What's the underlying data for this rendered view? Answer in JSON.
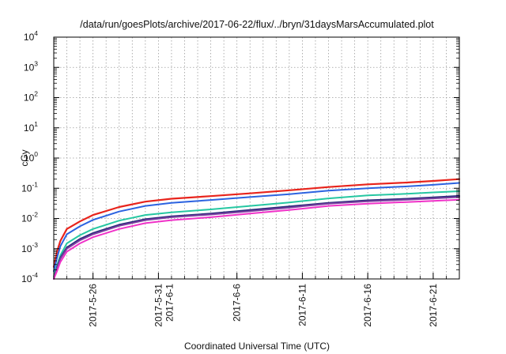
{
  "chart_data": {
    "type": "line",
    "title": "/data/run/goesPlots/archive/2017-06-22/flux/../bryn/31daysMarsAccumulated.plot",
    "xlabel": "Coordinated Universal Time (UTC)",
    "ylabel": "cGy",
    "y_scale": "log",
    "ylim": [
      0.0001,
      10000
    ],
    "xlim": [
      "2017-05-23",
      "2017-06-23"
    ],
    "grid": true,
    "legend": "none",
    "y_ticks": [
      {
        "base": "10",
        "exp": "-4",
        "value": 0.0001
      },
      {
        "base": "10",
        "exp": "-3",
        "value": 0.001
      },
      {
        "base": "10",
        "exp": "-2",
        "value": 0.01
      },
      {
        "base": "10",
        "exp": "-1",
        "value": 0.1
      },
      {
        "base": "10",
        "exp": "0",
        "value": 1
      },
      {
        "base": "10",
        "exp": "1",
        "value": 10
      },
      {
        "base": "10",
        "exp": "2",
        "value": 100
      },
      {
        "base": "10",
        "exp": "3",
        "value": 1000
      },
      {
        "base": "10",
        "exp": "4",
        "value": 10000
      }
    ],
    "x_ticks": [
      {
        "date": "2017-05-26",
        "lines": [
          "2017-5-26"
        ]
      },
      {
        "date": "2017-05-31",
        "lines": [
          "2017-5-31",
          "2017-6-1"
        ]
      },
      {
        "date": "2017-06-06",
        "lines": [
          "2017-6-6"
        ]
      },
      {
        "date": "2017-06-11",
        "lines": [
          "2017-6-11"
        ]
      },
      {
        "date": "2017-06-16",
        "lines": [
          "2017-6-16"
        ]
      },
      {
        "date": "2017-06-21",
        "lines": [
          "2017-6-21"
        ]
      }
    ],
    "series": [
      {
        "color": "#e8241c",
        "width": 2.2,
        "x": [
          "2017-05-23",
          "2017-05-23T06:00",
          "2017-05-23T12:00",
          "2017-05-24",
          "2017-05-25",
          "2017-05-26",
          "2017-05-28",
          "2017-05-30",
          "2017-06-01",
          "2017-06-04",
          "2017-06-07",
          "2017-06-10",
          "2017-06-13",
          "2017-06-16",
          "2017-06-19",
          "2017-06-21",
          "2017-06-23"
        ],
        "y": [
          0.00025,
          0.0008,
          0.0018,
          0.0045,
          0.008,
          0.013,
          0.024,
          0.036,
          0.045,
          0.055,
          0.068,
          0.086,
          0.11,
          0.135,
          0.155,
          0.175,
          0.2
        ]
      },
      {
        "color": "#2c63e0",
        "width": 2.0,
        "x": [
          "2017-05-23",
          "2017-05-23T06:00",
          "2017-05-23T12:00",
          "2017-05-24",
          "2017-05-25",
          "2017-05-26",
          "2017-05-28",
          "2017-05-30",
          "2017-06-01",
          "2017-06-04",
          "2017-06-07",
          "2017-06-10",
          "2017-06-13",
          "2017-06-16",
          "2017-06-19",
          "2017-06-21",
          "2017-06-23"
        ],
        "y": [
          0.00018,
          0.0005,
          0.0012,
          0.003,
          0.0055,
          0.009,
          0.017,
          0.026,
          0.033,
          0.041,
          0.051,
          0.064,
          0.083,
          0.1,
          0.115,
          0.13,
          0.15
        ]
      },
      {
        "color": "#26c7a2",
        "width": 2.0,
        "x": [
          "2017-05-23",
          "2017-05-23T06:00",
          "2017-05-23T12:00",
          "2017-05-24",
          "2017-05-25",
          "2017-05-26",
          "2017-05-28",
          "2017-05-30",
          "2017-06-01",
          "2017-06-04",
          "2017-06-07",
          "2017-06-10",
          "2017-06-13",
          "2017-06-16",
          "2017-06-19",
          "2017-06-21",
          "2017-06-23"
        ],
        "y": [
          0.00012,
          0.00028,
          0.0006,
          0.0015,
          0.0028,
          0.0045,
          0.0085,
          0.013,
          0.016,
          0.02,
          0.026,
          0.034,
          0.046,
          0.058,
          0.066,
          0.073,
          0.08
        ]
      },
      {
        "color": "#2a2a7a",
        "width": 2.0,
        "x": [
          "2017-05-23",
          "2017-05-23T06:00",
          "2017-05-23T12:00",
          "2017-05-24",
          "2017-05-25",
          "2017-05-26",
          "2017-05-28",
          "2017-05-30",
          "2017-06-01",
          "2017-06-04",
          "2017-06-07",
          "2017-06-10",
          "2017-06-13",
          "2017-06-16",
          "2017-06-19",
          "2017-06-21",
          "2017-06-23"
        ],
        "y": [
          0.0001,
          0.00024,
          0.0005,
          0.0011,
          0.0021,
          0.0033,
          0.0062,
          0.0095,
          0.0118,
          0.0145,
          0.019,
          0.025,
          0.033,
          0.04,
          0.045,
          0.05,
          0.056
        ]
      },
      {
        "color": "#7a3fa0",
        "width": 2.0,
        "x": [
          "2017-05-23",
          "2017-05-23T06:00",
          "2017-05-23T12:00",
          "2017-05-24",
          "2017-05-25",
          "2017-05-26",
          "2017-05-28",
          "2017-05-30",
          "2017-06-01",
          "2017-06-04",
          "2017-06-07",
          "2017-06-10",
          "2017-06-13",
          "2017-06-16",
          "2017-06-19",
          "2017-06-21",
          "2017-06-23"
        ],
        "y": [
          0.0001,
          0.00022,
          0.00046,
          0.001,
          0.0019,
          0.003,
          0.0057,
          0.0088,
          0.011,
          0.0135,
          0.0175,
          0.023,
          0.031,
          0.037,
          0.042,
          0.046,
          0.051
        ]
      },
      {
        "color": "#f032c8",
        "width": 2.0,
        "x": [
          "2017-05-23",
          "2017-05-23T06:00",
          "2017-05-23T12:00",
          "2017-05-24",
          "2017-05-25",
          "2017-05-26",
          "2017-05-28",
          "2017-05-30",
          "2017-06-01",
          "2017-06-04",
          "2017-06-07",
          "2017-06-10",
          "2017-06-13",
          "2017-06-16",
          "2017-06-19",
          "2017-06-21",
          "2017-06-23"
        ],
        "y": [
          0.0001,
          0.00018,
          0.00036,
          0.0008,
          0.0015,
          0.0024,
          0.0045,
          0.007,
          0.0088,
          0.011,
          0.0145,
          0.019,
          0.026,
          0.031,
          0.035,
          0.038,
          0.042
        ]
      }
    ]
  }
}
